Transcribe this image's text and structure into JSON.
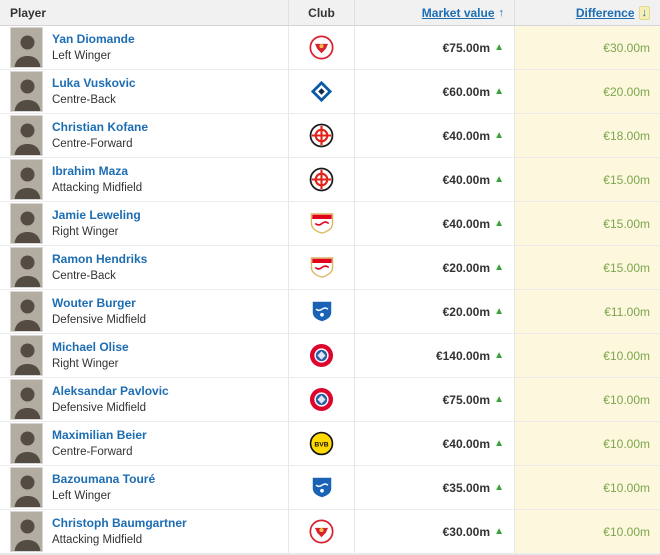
{
  "table": {
    "headers": {
      "player": "Player",
      "club": "Club",
      "market_value": "Market value",
      "difference": "Difference"
    },
    "icons": {
      "trend_up": "▲",
      "sort_up": "↑",
      "sort_down": "↓"
    },
    "colors": {
      "link_blue": "#1d6db3",
      "trend_green": "#3ba23b",
      "diff_green": "#7aa54d",
      "diff_column_bg": "#fdf8dd",
      "header_bg": "#f1f1f1"
    },
    "rows": [
      {
        "name": "Yan Diomande",
        "position": "Left Winger",
        "club": "rb-leipzig",
        "market_value": "€75.00m",
        "difference": "€30.00m",
        "trend": "up"
      },
      {
        "name": "Luka Vuskovic",
        "position": "Centre-Back",
        "club": "hamburger-sv",
        "market_value": "€60.00m",
        "difference": "€20.00m",
        "trend": "up"
      },
      {
        "name": "Christian Kofane",
        "position": "Centre-Forward",
        "club": "bayer-leverkusen",
        "market_value": "€40.00m",
        "difference": "€18.00m",
        "trend": "up"
      },
      {
        "name": "Ibrahim Maza",
        "position": "Attacking Midfield",
        "club": "bayer-leverkusen",
        "market_value": "€40.00m",
        "difference": "€15.00m",
        "trend": "up"
      },
      {
        "name": "Jamie Leweling",
        "position": "Right Winger",
        "club": "vfb-stuttgart",
        "market_value": "€40.00m",
        "difference": "€15.00m",
        "trend": "up"
      },
      {
        "name": "Ramon Hendriks",
        "position": "Centre-Back",
        "club": "vfb-stuttgart",
        "market_value": "€20.00m",
        "difference": "€15.00m",
        "trend": "up"
      },
      {
        "name": "Wouter Burger",
        "position": "Defensive Midfield",
        "club": "hoffenheim",
        "market_value": "€20.00m",
        "difference": "€11.00m",
        "trend": "up"
      },
      {
        "name": "Michael Olise",
        "position": "Right Winger",
        "club": "bayern-munich",
        "market_value": "€140.00m",
        "difference": "€10.00m",
        "trend": "up"
      },
      {
        "name": "Aleksandar Pavlovic",
        "position": "Defensive Midfield",
        "club": "bayern-munich",
        "market_value": "€75.00m",
        "difference": "€10.00m",
        "trend": "up"
      },
      {
        "name": "Maximilian Beier",
        "position": "Centre-Forward",
        "club": "borussia-dortmund",
        "market_value": "€40.00m",
        "difference": "€10.00m",
        "trend": "up"
      },
      {
        "name": "Bazoumana Touré",
        "position": "Left Winger",
        "club": "hoffenheim",
        "market_value": "€35.00m",
        "difference": "€10.00m",
        "trend": "up"
      },
      {
        "name": "Christoph Baumgartner",
        "position": "Attacking Midfield",
        "club": "rb-leipzig",
        "market_value": "€30.00m",
        "difference": "€10.00m",
        "trend": "up"
      }
    ]
  }
}
